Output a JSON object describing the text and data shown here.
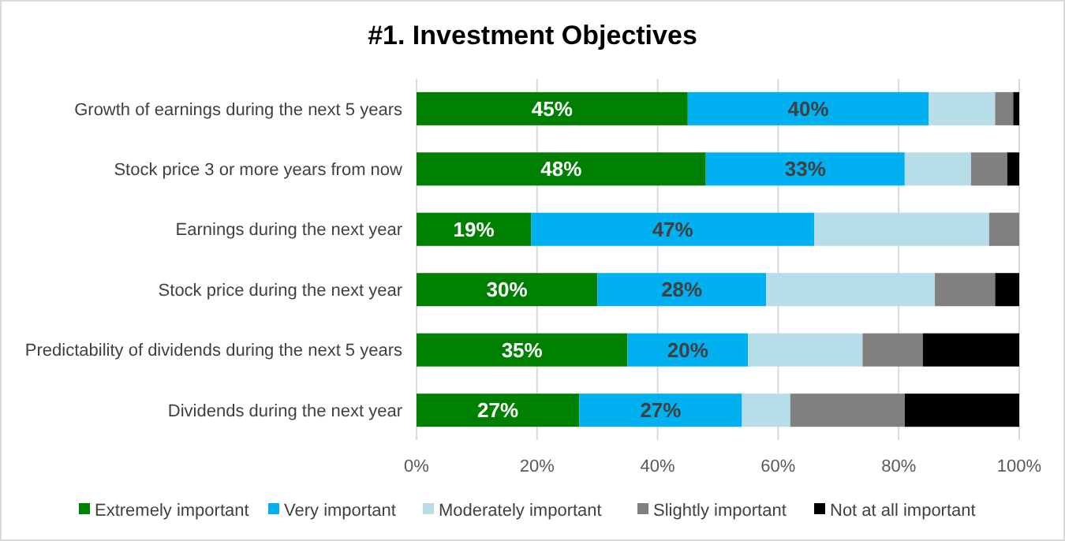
{
  "chart_data": {
    "type": "bar",
    "orientation": "horizontal",
    "stacked": true,
    "title": "#1. Investment Objectives",
    "categories": [
      "Growth of earnings during the next 5 years",
      "Stock price 3 or more years from now",
      "Earnings during the next year",
      "Stock price during the next year",
      "Predictability of dividends during the next 5 years",
      "Dividends during the next year"
    ],
    "series": [
      {
        "name": "Extremely important",
        "color": "#008000",
        "values": [
          45,
          48,
          19,
          30,
          35,
          27
        ],
        "value_labels": [
          "45%",
          "48%",
          "19%",
          "30%",
          "35%",
          "27%"
        ]
      },
      {
        "name": "Very important",
        "color": "#00b0f0",
        "values": [
          40,
          33,
          47,
          28,
          20,
          27
        ],
        "value_labels": [
          "40%",
          "33%",
          "47%",
          "28%",
          "20%",
          "27%"
        ]
      },
      {
        "name": "Moderately important",
        "color": "#b7dee8",
        "values": [
          11,
          11,
          29,
          28,
          19,
          8
        ]
      },
      {
        "name": "Slightly important",
        "color": "#808080",
        "values": [
          3,
          6,
          5,
          10,
          10,
          19
        ]
      },
      {
        "name": "Not at all important",
        "color": "#000000",
        "values": [
          1,
          2,
          0,
          4,
          16,
          19
        ]
      }
    ],
    "xlim": [
      0,
      100
    ],
    "xticks": [
      {
        "value": 0,
        "label": "0%"
      },
      {
        "value": 20,
        "label": "20%"
      },
      {
        "value": 40,
        "label": "40%"
      },
      {
        "value": 60,
        "label": "60%"
      },
      {
        "value": 80,
        "label": "80%"
      },
      {
        "value": 100,
        "label": "100%"
      }
    ],
    "grid": "x",
    "legend": "bottom"
  }
}
